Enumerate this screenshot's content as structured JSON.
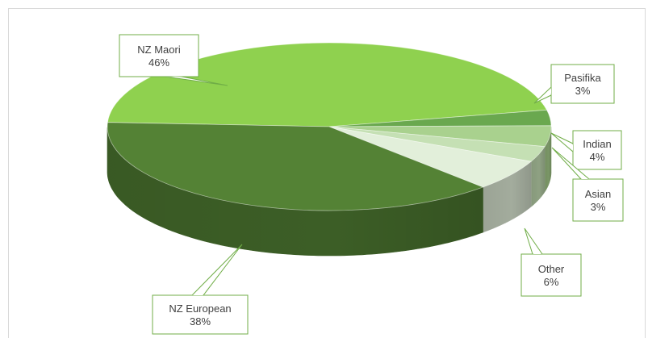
{
  "chart_data": {
    "type": "pie",
    "style": "3d",
    "title": "",
    "slices": [
      {
        "name": "NZ Maori",
        "value": 46,
        "label": "46%",
        "color": "#8fd14f"
      },
      {
        "name": "Pasifika",
        "value": 3,
        "label": "3%",
        "color": "#6aa84f"
      },
      {
        "name": "Indian",
        "value": 4,
        "label": "4%",
        "color": "#a9d18e"
      },
      {
        "name": "Asian",
        "value": 3,
        "label": "3%",
        "color": "#c5e0b4"
      },
      {
        "name": "Other",
        "value": 6,
        "label": "6%",
        "color": "#e2efda"
      },
      {
        "name": "NZ European",
        "value": 38,
        "label": "38%",
        "color": "#548235"
      }
    ],
    "data_labels": "callouts",
    "legend": "none"
  }
}
